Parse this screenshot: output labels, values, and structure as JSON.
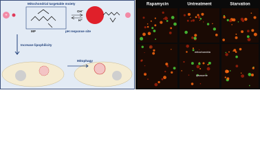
{
  "left_panel": {
    "moiety_label": "Mitochondrial targetable moiety",
    "probe_name": "MP",
    "ph_site_label": "pH response site",
    "base_label": "OH⁻",
    "acid_label": "H⁺",
    "lipophilicity_label": "Increase lipophilicity",
    "process_label": "Mitophagy"
  },
  "right_panel": {
    "columns": [
      "Rapamycin",
      "Untreatment",
      "Starvation"
    ],
    "annotations": [
      "mitochondria",
      "lysosome"
    ]
  }
}
